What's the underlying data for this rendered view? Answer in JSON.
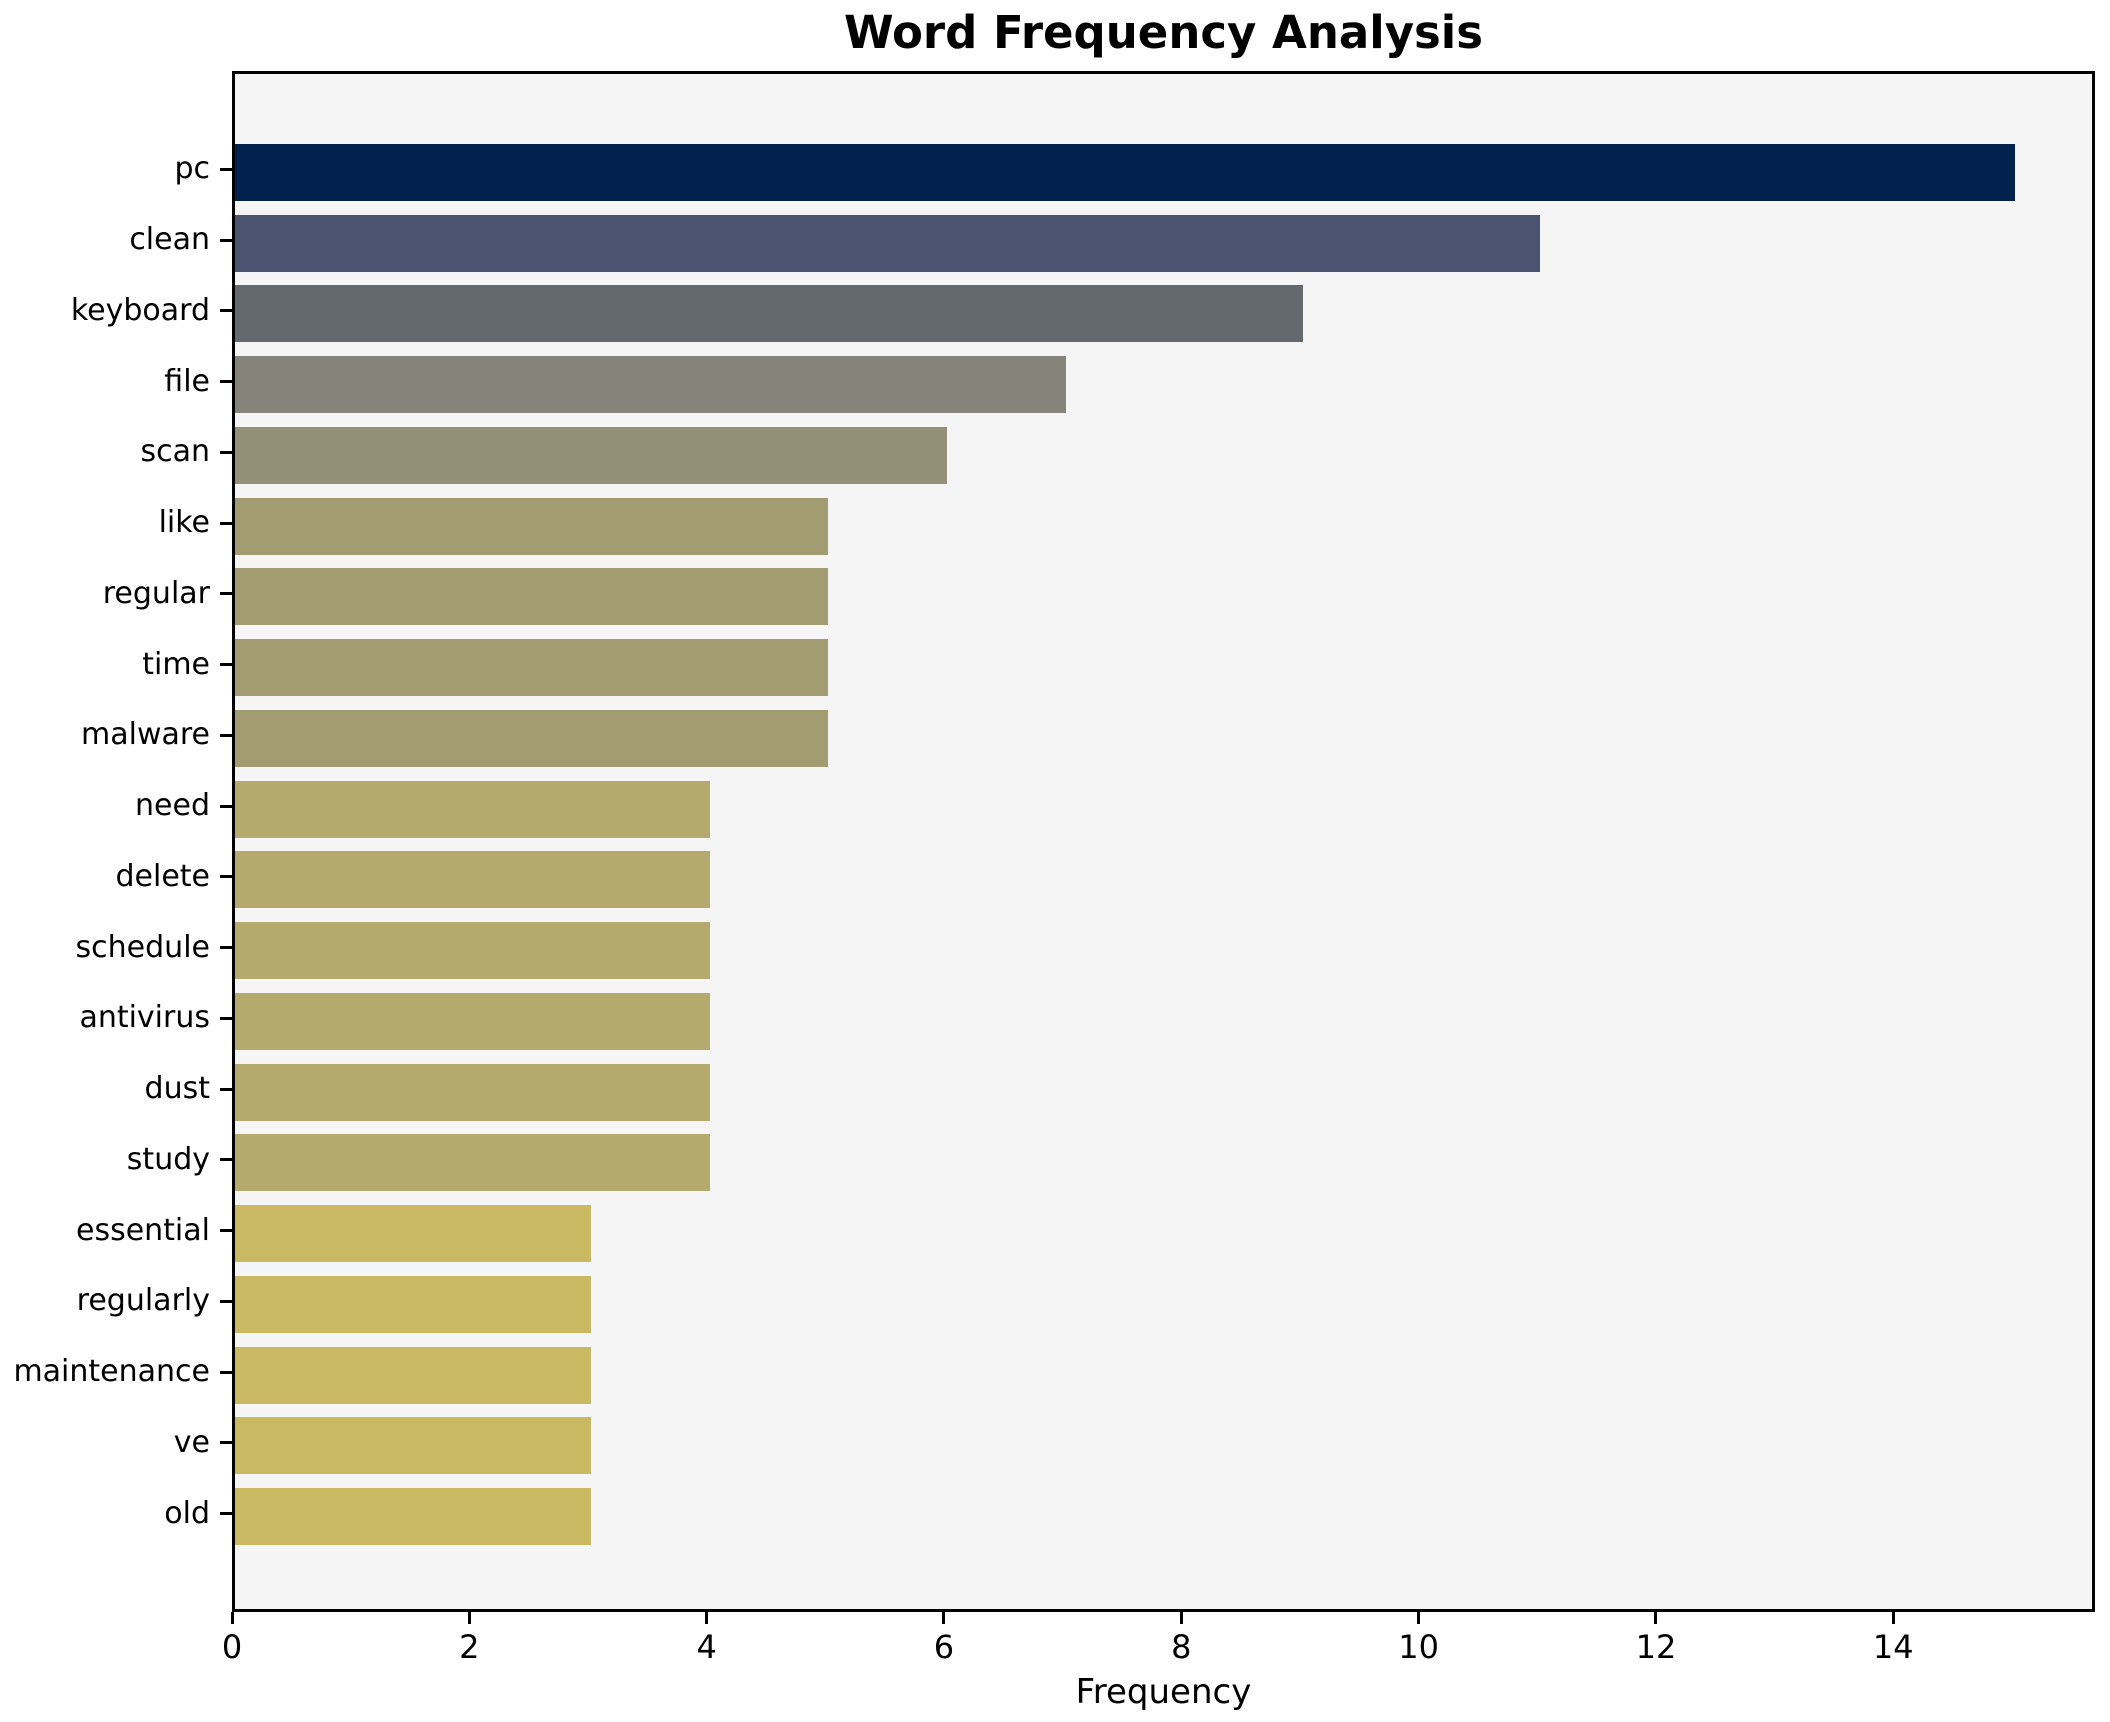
{
  "chart_data": {
    "type": "bar",
    "orientation": "horizontal",
    "title": "Word Frequency Analysis",
    "xlabel": "Frequency",
    "ylabel": "",
    "categories": [
      "pc",
      "clean",
      "keyboard",
      "file",
      "scan",
      "like",
      "regular",
      "time",
      "malware",
      "need",
      "delete",
      "schedule",
      "antivirus",
      "dust",
      "study",
      "essential",
      "regularly",
      "maintenance",
      "ve",
      "old"
    ],
    "values": [
      15,
      11,
      9,
      7,
      6,
      5,
      5,
      5,
      5,
      4,
      4,
      4,
      4,
      4,
      4,
      3,
      3,
      3,
      3,
      3
    ],
    "bar_colors": [
      "#02224e",
      "#4a5370",
      "#64686f",
      "#84847a",
      "#948f77",
      "#a39c72",
      "#a39c72",
      "#a39c72",
      "#a39c72",
      "#b5aa6d",
      "#b5aa6d",
      "#b5aa6d",
      "#b5aa6d",
      "#b5aa6d",
      "#b5aa6d",
      "#c9b963",
      "#c9b963",
      "#c9b963",
      "#c9b963",
      "#c9b963"
    ],
    "xlim": [
      0,
      15.7
    ],
    "xticks": [
      0,
      2,
      4,
      6,
      8,
      10,
      12,
      14
    ],
    "grid": false,
    "legend": "none",
    "plot_bg": "#f5f5f6",
    "fig_bg": "#ffffff"
  }
}
